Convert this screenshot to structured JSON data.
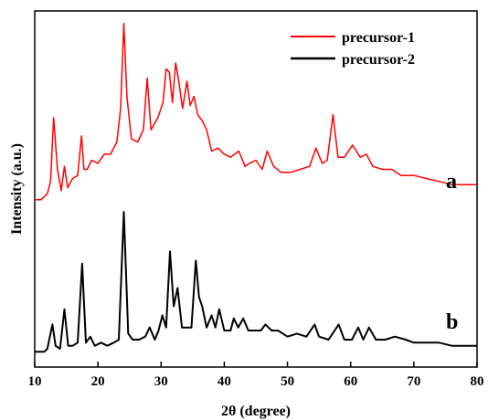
{
  "chart_data": {
    "type": "line",
    "title": "",
    "xlabel": "2θ (degree)",
    "ylabel": "Intensity (a.u.)",
    "xlim": [
      10,
      80
    ],
    "ylim": [
      0,
      100
    ],
    "xticks": [
      10,
      20,
      30,
      40,
      50,
      60,
      70,
      80
    ],
    "x_tick_labels": [
      "10",
      "20",
      "30",
      "40",
      "50",
      "60",
      "70",
      "80"
    ],
    "y_tick_labels_shown": false,
    "grid": false,
    "legend_position": "top-right",
    "series": [
      {
        "name": "precursor-1",
        "tag": "a",
        "color": "#ff0000",
        "x": [
          10,
          11,
          12,
          12.5,
          13,
          13.6,
          14.2,
          14.7,
          15.2,
          16,
          16.8,
          17.4,
          17.8,
          18.3,
          19,
          20,
          21,
          22,
          23,
          23.6,
          24.1,
          24.6,
          25.3,
          26.3,
          27.2,
          27.8,
          28.4,
          29.5,
          30.3,
          30.8,
          31.3,
          31.8,
          32.3,
          32.8,
          33.4,
          34.1,
          34.6,
          35.2,
          35.8,
          36.5,
          37.2,
          38,
          39,
          40,
          41,
          42.3,
          43.3,
          44,
          45,
          46,
          46.8,
          47.8,
          49,
          50.5,
          52,
          53.5,
          54.5,
          55.5,
          56.3,
          57.2,
          58,
          59,
          60.3,
          61.5,
          62.5,
          63.5,
          65,
          66.5,
          68,
          70,
          72,
          74,
          76,
          78,
          80
        ],
        "y": [
          52,
          52,
          54,
          58,
          79,
          62,
          55,
          63,
          56,
          59,
          60,
          73,
          62,
          62,
          65,
          64,
          67,
          67,
          71,
          82,
          110,
          86,
          72,
          71,
          75,
          92,
          75,
          79,
          84,
          95,
          94,
          84,
          97,
          91,
          82,
          91,
          83,
          86,
          80,
          78,
          75,
          68,
          69,
          67,
          66,
          68,
          63,
          64,
          65,
          62,
          68,
          63,
          61,
          61,
          62,
          63,
          69,
          64,
          65,
          80,
          66,
          66,
          70,
          66,
          67,
          63,
          62,
          62,
          60,
          60,
          59,
          58,
          57,
          57,
          57
        ]
      },
      {
        "name": "precursor-2",
        "tag": "b",
        "color": "#000000",
        "x": [
          10,
          11,
          11.5,
          12,
          12.3,
          12.8,
          13.3,
          14,
          14.7,
          15.3,
          16,
          16.8,
          17.5,
          18.1,
          18.8,
          19.5,
          20.5,
          21.5,
          22.5,
          23.3,
          24.1,
          24.8,
          25.5,
          26.5,
          27.5,
          28.2,
          29,
          29.6,
          30.2,
          30.8,
          31.4,
          32,
          32.6,
          33.3,
          34,
          34.8,
          35.5,
          36,
          36.5,
          37.2,
          38,
          38.6,
          39.2,
          40,
          41,
          41.5,
          42.2,
          43,
          43.8,
          44.8,
          45.8,
          46.5,
          47.5,
          48.5,
          50,
          51.5,
          53,
          54.3,
          55,
          56.5,
          58.1,
          59,
          60.2,
          61.2,
          62,
          62.9,
          64,
          65.5,
          67,
          68.7,
          70,
          72,
          74,
          76,
          78,
          80
        ],
        "y": [
          2,
          2,
          2,
          3,
          6,
          11,
          4,
          3,
          16,
          4,
          4,
          5,
          31,
          5,
          7,
          4,
          5,
          4,
          5,
          6,
          48,
          8,
          6,
          6,
          7,
          10,
          6,
          9,
          14,
          10,
          35,
          17,
          23,
          10,
          10,
          10,
          32,
          20,
          17,
          10,
          14,
          10,
          16,
          9,
          9,
          13,
          10,
          13,
          9,
          9,
          9,
          11,
          9,
          9,
          7,
          8,
          7,
          11,
          7,
          6,
          11,
          6,
          6,
          10,
          6,
          10,
          6,
          6,
          7,
          6,
          5,
          5,
          5,
          4,
          4,
          4
        ]
      }
    ]
  }
}
